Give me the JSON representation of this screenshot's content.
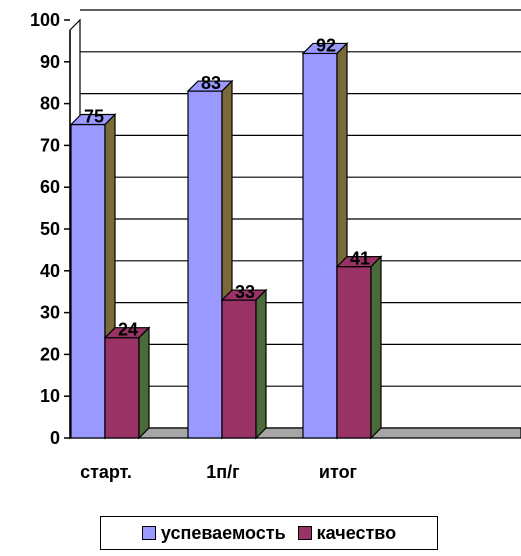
{
  "chart_data": {
    "type": "bar",
    "categories": [
      "старт.",
      "1п/г",
      "итог"
    ],
    "series": [
      {
        "name": "успеваемость",
        "values": [
          75,
          83,
          92
        ],
        "color": "#9999ff",
        "side_color": "#7a6a3a"
      },
      {
        "name": "качество",
        "values": [
          24,
          33,
          41
        ],
        "color": "#993366",
        "side_color": "#4a6a3a"
      }
    ],
    "ylim": [
      0,
      100
    ],
    "yticks": [
      0,
      10,
      20,
      30,
      40,
      50,
      60,
      70,
      80,
      90,
      100
    ],
    "grid": true,
    "legend_position": "bottom",
    "title": "",
    "xlabel": "",
    "ylabel": ""
  }
}
